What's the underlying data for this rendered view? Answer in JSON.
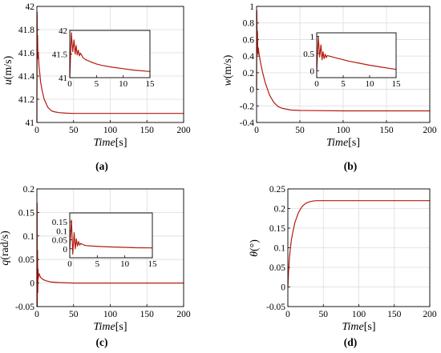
{
  "colors": {
    "series": "#b41a0f",
    "grid": "#dcdcdc",
    "axis": "#000000"
  },
  "chart_data": [
    {
      "type": "line",
      "caption": "(a)",
      "ylabel_var": "u",
      "ylabel_unit": "(m/s)",
      "xlabel_var": "Time",
      "xlabel_unit": "[s]",
      "xlim": [
        0,
        200
      ],
      "ylim": [
        41,
        42
      ],
      "xticks": [
        "0",
        "50",
        "100",
        "150",
        "200"
      ],
      "yticks": [
        "41",
        "41.2",
        "41.4",
        "41.6",
        "41.8",
        "42"
      ],
      "grid": true,
      "x": [
        0,
        0.3,
        0.7,
        1,
        1.4,
        2,
        3,
        4,
        5,
        7,
        10,
        15,
        20,
        25,
        30,
        40,
        50,
        100,
        150,
        200
      ],
      "y": [
        41.0,
        41.95,
        41.6,
        41.75,
        41.55,
        41.6,
        41.48,
        41.42,
        41.35,
        41.28,
        41.2,
        41.13,
        41.1,
        41.09,
        41.085,
        41.08,
        41.078,
        41.078,
        41.078,
        41.078
      ],
      "inset": {
        "xlim": [
          0,
          15
        ],
        "ylim": [
          41,
          42
        ],
        "xticks": [
          "0",
          "5",
          "10",
          "15"
        ],
        "yticks": [
          "41",
          "41.5",
          "42"
        ],
        "x": [
          0,
          0.3,
          0.55,
          0.8,
          1.0,
          1.2,
          1.4,
          1.6,
          1.8,
          2.0,
          2.5,
          3,
          4,
          5,
          6,
          8,
          10,
          12,
          15
        ],
        "y": [
          41.0,
          41.95,
          41.55,
          41.8,
          41.5,
          41.68,
          41.48,
          41.58,
          41.46,
          41.52,
          41.42,
          41.38,
          41.33,
          41.29,
          41.26,
          41.22,
          41.19,
          41.16,
          41.13
        ]
      }
    },
    {
      "type": "line",
      "caption": "(b)",
      "ylabel_var": "w",
      "ylabel_unit": "(m/s)",
      "xlabel_var": "Time",
      "xlabel_unit": "[s]",
      "xlim": [
        0,
        200
      ],
      "ylim": [
        -0.4,
        1
      ],
      "xticks": [
        "0",
        "50",
        "100",
        "150",
        "200"
      ],
      "yticks": [
        "-0.4",
        "-0.2",
        "0",
        "0.2",
        "0.4",
        "0.6",
        "0.8",
        "1"
      ],
      "grid": true,
      "x": [
        0,
        0.3,
        0.7,
        1,
        1.5,
        2,
        3,
        5,
        7,
        10,
        15,
        20,
        25,
        30,
        40,
        50,
        100,
        150,
        200
      ],
      "y": [
        0,
        0.95,
        0.45,
        0.7,
        0.42,
        0.5,
        0.42,
        0.3,
        0.2,
        0.08,
        -0.07,
        -0.16,
        -0.21,
        -0.23,
        -0.25,
        -0.255,
        -0.26,
        -0.26,
        -0.26
      ],
      "inset": {
        "xlim": [
          0,
          15
        ],
        "ylim": [
          -0.2,
          1.1
        ],
        "xticks": [
          "0",
          "5",
          "10",
          "15"
        ],
        "yticks": [
          "0",
          "0.5",
          "1"
        ],
        "x": [
          0,
          0.3,
          0.55,
          0.8,
          1.0,
          1.2,
          1.4,
          1.6,
          1.8,
          2.0,
          2.5,
          3,
          4,
          5,
          6,
          8,
          10,
          12,
          15
        ],
        "y": [
          0,
          0.98,
          0.4,
          0.75,
          0.32,
          0.55,
          0.35,
          0.48,
          0.38,
          0.44,
          0.42,
          0.4,
          0.36,
          0.32,
          0.28,
          0.22,
          0.16,
          0.11,
          0.04
        ]
      }
    },
    {
      "type": "line",
      "caption": "(c)",
      "ylabel_var": "q",
      "ylabel_unit": "(rad/s)",
      "xlabel_var": "Time",
      "xlabel_unit": "[s]",
      "xlim": [
        0,
        200
      ],
      "ylim": [
        -0.05,
        0.2
      ],
      "xticks": [
        "0",
        "50",
        "100",
        "150",
        "200"
      ],
      "yticks": [
        "-0.05",
        "0",
        "0.05",
        "0.1",
        "0.15",
        "0.2"
      ],
      "grid": true,
      "x": [
        0,
        0.3,
        0.6,
        0.9,
        1.2,
        1.6,
        2,
        3,
        5,
        8,
        12,
        20,
        30,
        50,
        100,
        150,
        200
      ],
      "y": [
        0,
        0.17,
        -0.05,
        0.07,
        -0.02,
        0.03,
        0.01,
        0.02,
        0.012,
        0.008,
        0.005,
        0.002,
        0.001,
        0,
        0,
        0,
        0
      ],
      "inset": {
        "xlim": [
          0,
          15
        ],
        "ylim": [
          -0.05,
          0.2
        ],
        "xticks": [
          "0",
          "5",
          "10",
          "15"
        ],
        "yticks": [
          "0",
          "0.05",
          "0.1",
          "0.15"
        ],
        "x": [
          0,
          0.3,
          0.55,
          0.8,
          1.0,
          1.2,
          1.4,
          1.6,
          1.8,
          2.0,
          2.5,
          3,
          4,
          6,
          8,
          10,
          12,
          15
        ],
        "y": [
          0,
          0.16,
          -0.03,
          0.09,
          0.0,
          0.055,
          0.015,
          0.04,
          0.02,
          0.03,
          0.022,
          0.018,
          0.015,
          0.012,
          0.01,
          0.008,
          0.006,
          0.005
        ]
      }
    },
    {
      "type": "line",
      "caption": "(d)",
      "ylabel_var": "θ",
      "ylabel_unit": "(°)",
      "xlabel_var": "Time",
      "xlabel_unit": "[s]",
      "xlim": [
        0,
        200
      ],
      "ylim": [
        -0.05,
        0.25
      ],
      "xticks": [
        "0",
        "50",
        "100",
        "150",
        "200"
      ],
      "yticks": [
        "-0.05",
        "0",
        "0.05",
        "0.1",
        "0.15",
        "0.2",
        "0.25"
      ],
      "grid": true,
      "x": [
        0,
        1,
        2,
        3,
        5,
        7,
        10,
        15,
        20,
        25,
        30,
        35,
        40,
        50,
        100,
        150,
        200
      ],
      "y": [
        0,
        0.04,
        0.07,
        0.09,
        0.12,
        0.14,
        0.165,
        0.19,
        0.205,
        0.213,
        0.217,
        0.219,
        0.22,
        0.22,
        0.22,
        0.22,
        0.22
      ]
    }
  ]
}
